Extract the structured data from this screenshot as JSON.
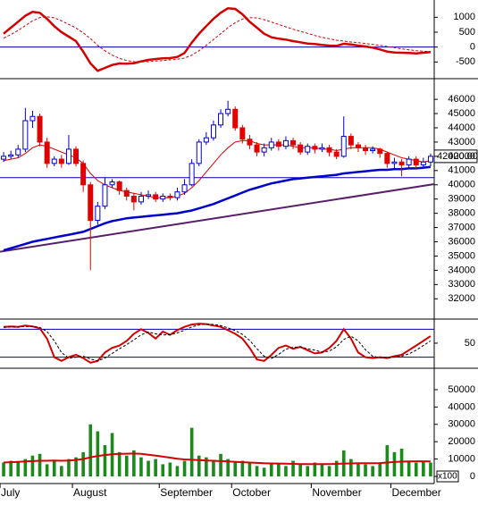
{
  "chart_data": [
    {
      "type": "line",
      "ylim": [
        -970,
        1490
      ],
      "yticks": [
        -500,
        0,
        500,
        1000
      ],
      "hlines": [
        0
      ],
      "hline_color": "#0000aa",
      "series": [
        {
          "color": "#d40000",
          "width": 2.5,
          "values": [
            450,
            650,
            850,
            1050,
            1180,
            1150,
            950,
            700,
            500,
            350,
            200,
            -150,
            -550,
            -800,
            -700,
            -600,
            -550,
            -560,
            -540,
            -480,
            -430,
            -400,
            -380,
            -370,
            -330,
            -200,
            150,
            450,
            700,
            950,
            1150,
            1300,
            1280,
            1100,
            850,
            650,
            450,
            330,
            280,
            250,
            200,
            160,
            120,
            100,
            70,
            50,
            40,
            110,
            90,
            50,
            20,
            -20,
            -80,
            -150,
            -180,
            -190,
            -200,
            -210,
            -190,
            -170
          ]
        },
        {
          "color": "#d40000",
          "width": 1,
          "dash": true,
          "values": [
            300,
            420,
            560,
            720,
            880,
            990,
            1020,
            980,
            880,
            760,
            640,
            480,
            280,
            60,
            -120,
            -270,
            -380,
            -450,
            -490,
            -500,
            -490,
            -470,
            -450,
            -430,
            -410,
            -370,
            -270,
            -120,
            60,
            250,
            450,
            650,
            820,
            940,
            990,
            980,
            920,
            840,
            760,
            680,
            600,
            530,
            460,
            390,
            330,
            280,
            230,
            200,
            170,
            150,
            120,
            90,
            60,
            20,
            -20,
            -60,
            -90,
            -120,
            -140,
            -150
          ]
        }
      ]
    },
    {
      "type": "candlestick",
      "ylim": [
        30700,
        47200
      ],
      "yticks": [
        32000,
        33000,
        34000,
        35000,
        36000,
        37000,
        38000,
        39000,
        40000,
        41000,
        42000,
        43000,
        44000,
        45000,
        46000
      ],
      "up_color": "#0000cc",
      "down_color": "#e00000",
      "hlines": [
        40500
      ],
      "hline_color": "#0000aa",
      "open": [
        41800,
        42000,
        42100,
        42500,
        44500,
        44800,
        43000,
        41500,
        41800,
        41500,
        42500,
        41500,
        40000,
        37500,
        38500,
        40000,
        40200,
        39600,
        39200,
        38800,
        39200,
        39300,
        39000,
        39200,
        39100,
        39500,
        40000,
        41500,
        43000,
        43300,
        44200,
        45000,
        45300,
        44000,
        43200,
        42800,
        42300,
        42600,
        43000,
        42700,
        43100,
        42800,
        42300,
        42700,
        42500,
        42600,
        42300,
        42000,
        43400,
        42800,
        42600,
        42400,
        42500,
        42200,
        41500,
        41600,
        41400,
        41800,
        41400,
        41600
      ],
      "high": [
        42300,
        42400,
        42800,
        45400,
        45200,
        45000,
        43300,
        42000,
        42100,
        43500,
        42700,
        41700,
        40200,
        38800,
        40500,
        40400,
        40300,
        39800,
        39400,
        39500,
        39600,
        39500,
        39400,
        39400,
        39800,
        40400,
        41800,
        43200,
        43700,
        44500,
        45300,
        45900,
        45500,
        44200,
        43500,
        43000,
        42900,
        43300,
        43200,
        43400,
        43300,
        43000,
        42900,
        42900,
        42900,
        42800,
        42500,
        44800,
        43600,
        43000,
        42800,
        42700,
        42600,
        42300,
        41900,
        41800,
        42000,
        42000,
        41900,
        42200
      ],
      "low": [
        41600,
        41800,
        41900,
        42300,
        44000,
        42700,
        41200,
        41300,
        41200,
        41400,
        41300,
        39500,
        34000,
        37200,
        38300,
        39800,
        39300,
        38900,
        38200,
        38600,
        39000,
        38800,
        38800,
        38900,
        38900,
        39300,
        39900,
        41300,
        42800,
        43100,
        44000,
        44800,
        43800,
        42900,
        42500,
        42000,
        42000,
        42400,
        42400,
        42500,
        42500,
        42100,
        42100,
        42200,
        42300,
        42000,
        41800,
        41900,
        42500,
        42300,
        42100,
        42200,
        41900,
        41200,
        41100,
        40600,
        41200,
        41100,
        41200,
        41300
      ],
      "close": [
        42000,
        42100,
        42500,
        44500,
        44800,
        43000,
        41500,
        41800,
        41500,
        42500,
        41500,
        40000,
        37500,
        38500,
        40000,
        40200,
        39600,
        39200,
        38800,
        39200,
        39300,
        39000,
        39200,
        39100,
        39500,
        40000,
        41500,
        43000,
        43300,
        44200,
        45000,
        45300,
        44000,
        43200,
        42800,
        42300,
        42600,
        43000,
        42700,
        43100,
        42800,
        42300,
        42700,
        42500,
        42600,
        42300,
        42000,
        43400,
        42800,
        42600,
        42400,
        42500,
        42200,
        41500,
        41600,
        41400,
        41800,
        41400,
        41600,
        42000
      ],
      "series": [
        {
          "color": "#e00000",
          "width": 1,
          "values": [
            41700,
            41800,
            41900,
            42200,
            42600,
            42800,
            42700,
            42500,
            42300,
            42100,
            41900,
            41500,
            40800,
            40300,
            40000,
            39800,
            39600,
            39500,
            39400,
            39300,
            39200,
            39100,
            39100,
            39100,
            39200,
            39400,
            39800,
            40300,
            40900,
            41500,
            42100,
            42600,
            43000,
            43100,
            43100,
            42900,
            42800,
            42800,
            42800,
            42800,
            42700,
            42600,
            42600,
            42600,
            42500,
            42500,
            42400,
            42500,
            42600,
            42600,
            42600,
            42600,
            42500,
            42300,
            42100,
            41900,
            41800,
            41700,
            41600,
            41700
          ]
        },
        {
          "color": "#0000cc",
          "width": 2.5,
          "values": [
            35400,
            35550,
            35700,
            35850,
            36000,
            36100,
            36200,
            36300,
            36400,
            36500,
            36600,
            36700,
            36900,
            37100,
            37300,
            37450,
            37550,
            37650,
            37700,
            37750,
            37800,
            37850,
            37900,
            37950,
            38000,
            38100,
            38200,
            38350,
            38500,
            38650,
            38850,
            39050,
            39250,
            39450,
            39650,
            39800,
            39950,
            40100,
            40200,
            40300,
            40400,
            40450,
            40500,
            40550,
            40600,
            40650,
            40700,
            40800,
            40850,
            40900,
            40950,
            41000,
            41050,
            41050,
            41100,
            41100,
            41150,
            41150,
            41200,
            41250
          ]
        }
      ],
      "trendline": {
        "color": "#5a1f6b",
        "x": [
          0,
          59
        ],
        "values": [
          35300,
          40050
        ]
      },
      "last": {
        "value": 42000,
        "label": "42000.00"
      }
    },
    {
      "type": "line",
      "ylim": [
        0,
        96
      ],
      "yticks": [
        50
      ],
      "hlines": [
        20,
        80
      ],
      "hline_color": "#0000aa",
      "series": [
        {
          "color": "#d40000",
          "width": 2,
          "values": [
            85,
            86,
            85,
            88,
            86,
            82,
            60,
            20,
            12,
            20,
            25,
            18,
            8,
            12,
            30,
            40,
            45,
            55,
            70,
            80,
            72,
            60,
            75,
            68,
            78,
            85,
            90,
            92,
            91,
            88,
            85,
            78,
            70,
            60,
            40,
            15,
            12,
            25,
            40,
            45,
            38,
            42,
            35,
            28,
            30,
            40,
            55,
            80,
            60,
            30,
            20,
            18,
            20,
            18,
            22,
            25,
            35,
            45,
            55,
            65
          ]
        },
        {
          "color": "#000000",
          "width": 1,
          "dash": true,
          "values": [
            84,
            85,
            85,
            86,
            86,
            84,
            75,
            55,
            30,
            18,
            20,
            22,
            16,
            12,
            18,
            28,
            38,
            47,
            57,
            68,
            74,
            70,
            68,
            68,
            72,
            78,
            85,
            89,
            91,
            90,
            88,
            83,
            77,
            69,
            56,
            38,
            22,
            17,
            26,
            37,
            41,
            42,
            38,
            35,
            31,
            33,
            42,
            58,
            65,
            55,
            36,
            22,
            19,
            19,
            20,
            22,
            27,
            35,
            45,
            55
          ]
        }
      ]
    },
    {
      "type": "bar",
      "ylim": [
        -3600,
        60800
      ],
      "yticks": [
        0,
        10000,
        20000,
        30000,
        40000,
        50000
      ],
      "color": "#1a8a1a",
      "unit_label": "x100",
      "categories": [
        "July",
        null,
        null,
        null,
        null,
        null,
        null,
        null,
        null,
        null,
        "August",
        null,
        null,
        null,
        null,
        null,
        null,
        null,
        null,
        null,
        null,
        null,
        "September",
        null,
        null,
        null,
        null,
        null,
        null,
        null,
        null,
        null,
        "October",
        null,
        null,
        null,
        null,
        null,
        null,
        null,
        null,
        null,
        null,
        "November",
        null,
        null,
        null,
        null,
        null,
        null,
        null,
        null,
        null,
        null,
        "December",
        null,
        null,
        null,
        null,
        null
      ],
      "values": [
        8000,
        9000,
        8500,
        10000,
        12000,
        13000,
        7000,
        9000,
        6000,
        10000,
        11000,
        14000,
        30000,
        26000,
        18000,
        25000,
        14000,
        12000,
        15000,
        11000,
        9000,
        10000,
        7000,
        8000,
        6000,
        9000,
        28000,
        12000,
        11000,
        9000,
        13000,
        10000,
        8000,
        9000,
        8000,
        6000,
        5000,
        8000,
        7000,
        6000,
        9000,
        7000,
        6000,
        8000,
        7000,
        6000,
        9000,
        15000,
        10000,
        8000,
        7000,
        6000,
        8000,
        18000,
        14000,
        16000,
        9000,
        8000,
        9000,
        8000
      ],
      "series": [
        {
          "color": "#d40000",
          "width": 2,
          "values": [
            8000,
            8200,
            8400,
            8600,
            8800,
            9000,
            9000,
            9100,
            9000,
            9200,
            9500,
            10000,
            11000,
            11800,
            12300,
            12800,
            13000,
            13100,
            13200,
            13000,
            12500,
            12000,
            11400,
            10800,
            10200,
            9800,
            9600,
            9400,
            9200,
            9000,
            8800,
            8600,
            8400,
            8200,
            8000,
            7800,
            7600,
            7500,
            7400,
            7300,
            7200,
            7100,
            7100,
            7100,
            7100,
            7100,
            7200,
            7400,
            7500,
            7600,
            7600,
            7600,
            7700,
            8000,
            8300,
            8500,
            8600,
            8700,
            8700,
            8600
          ]
        }
      ]
    }
  ]
}
